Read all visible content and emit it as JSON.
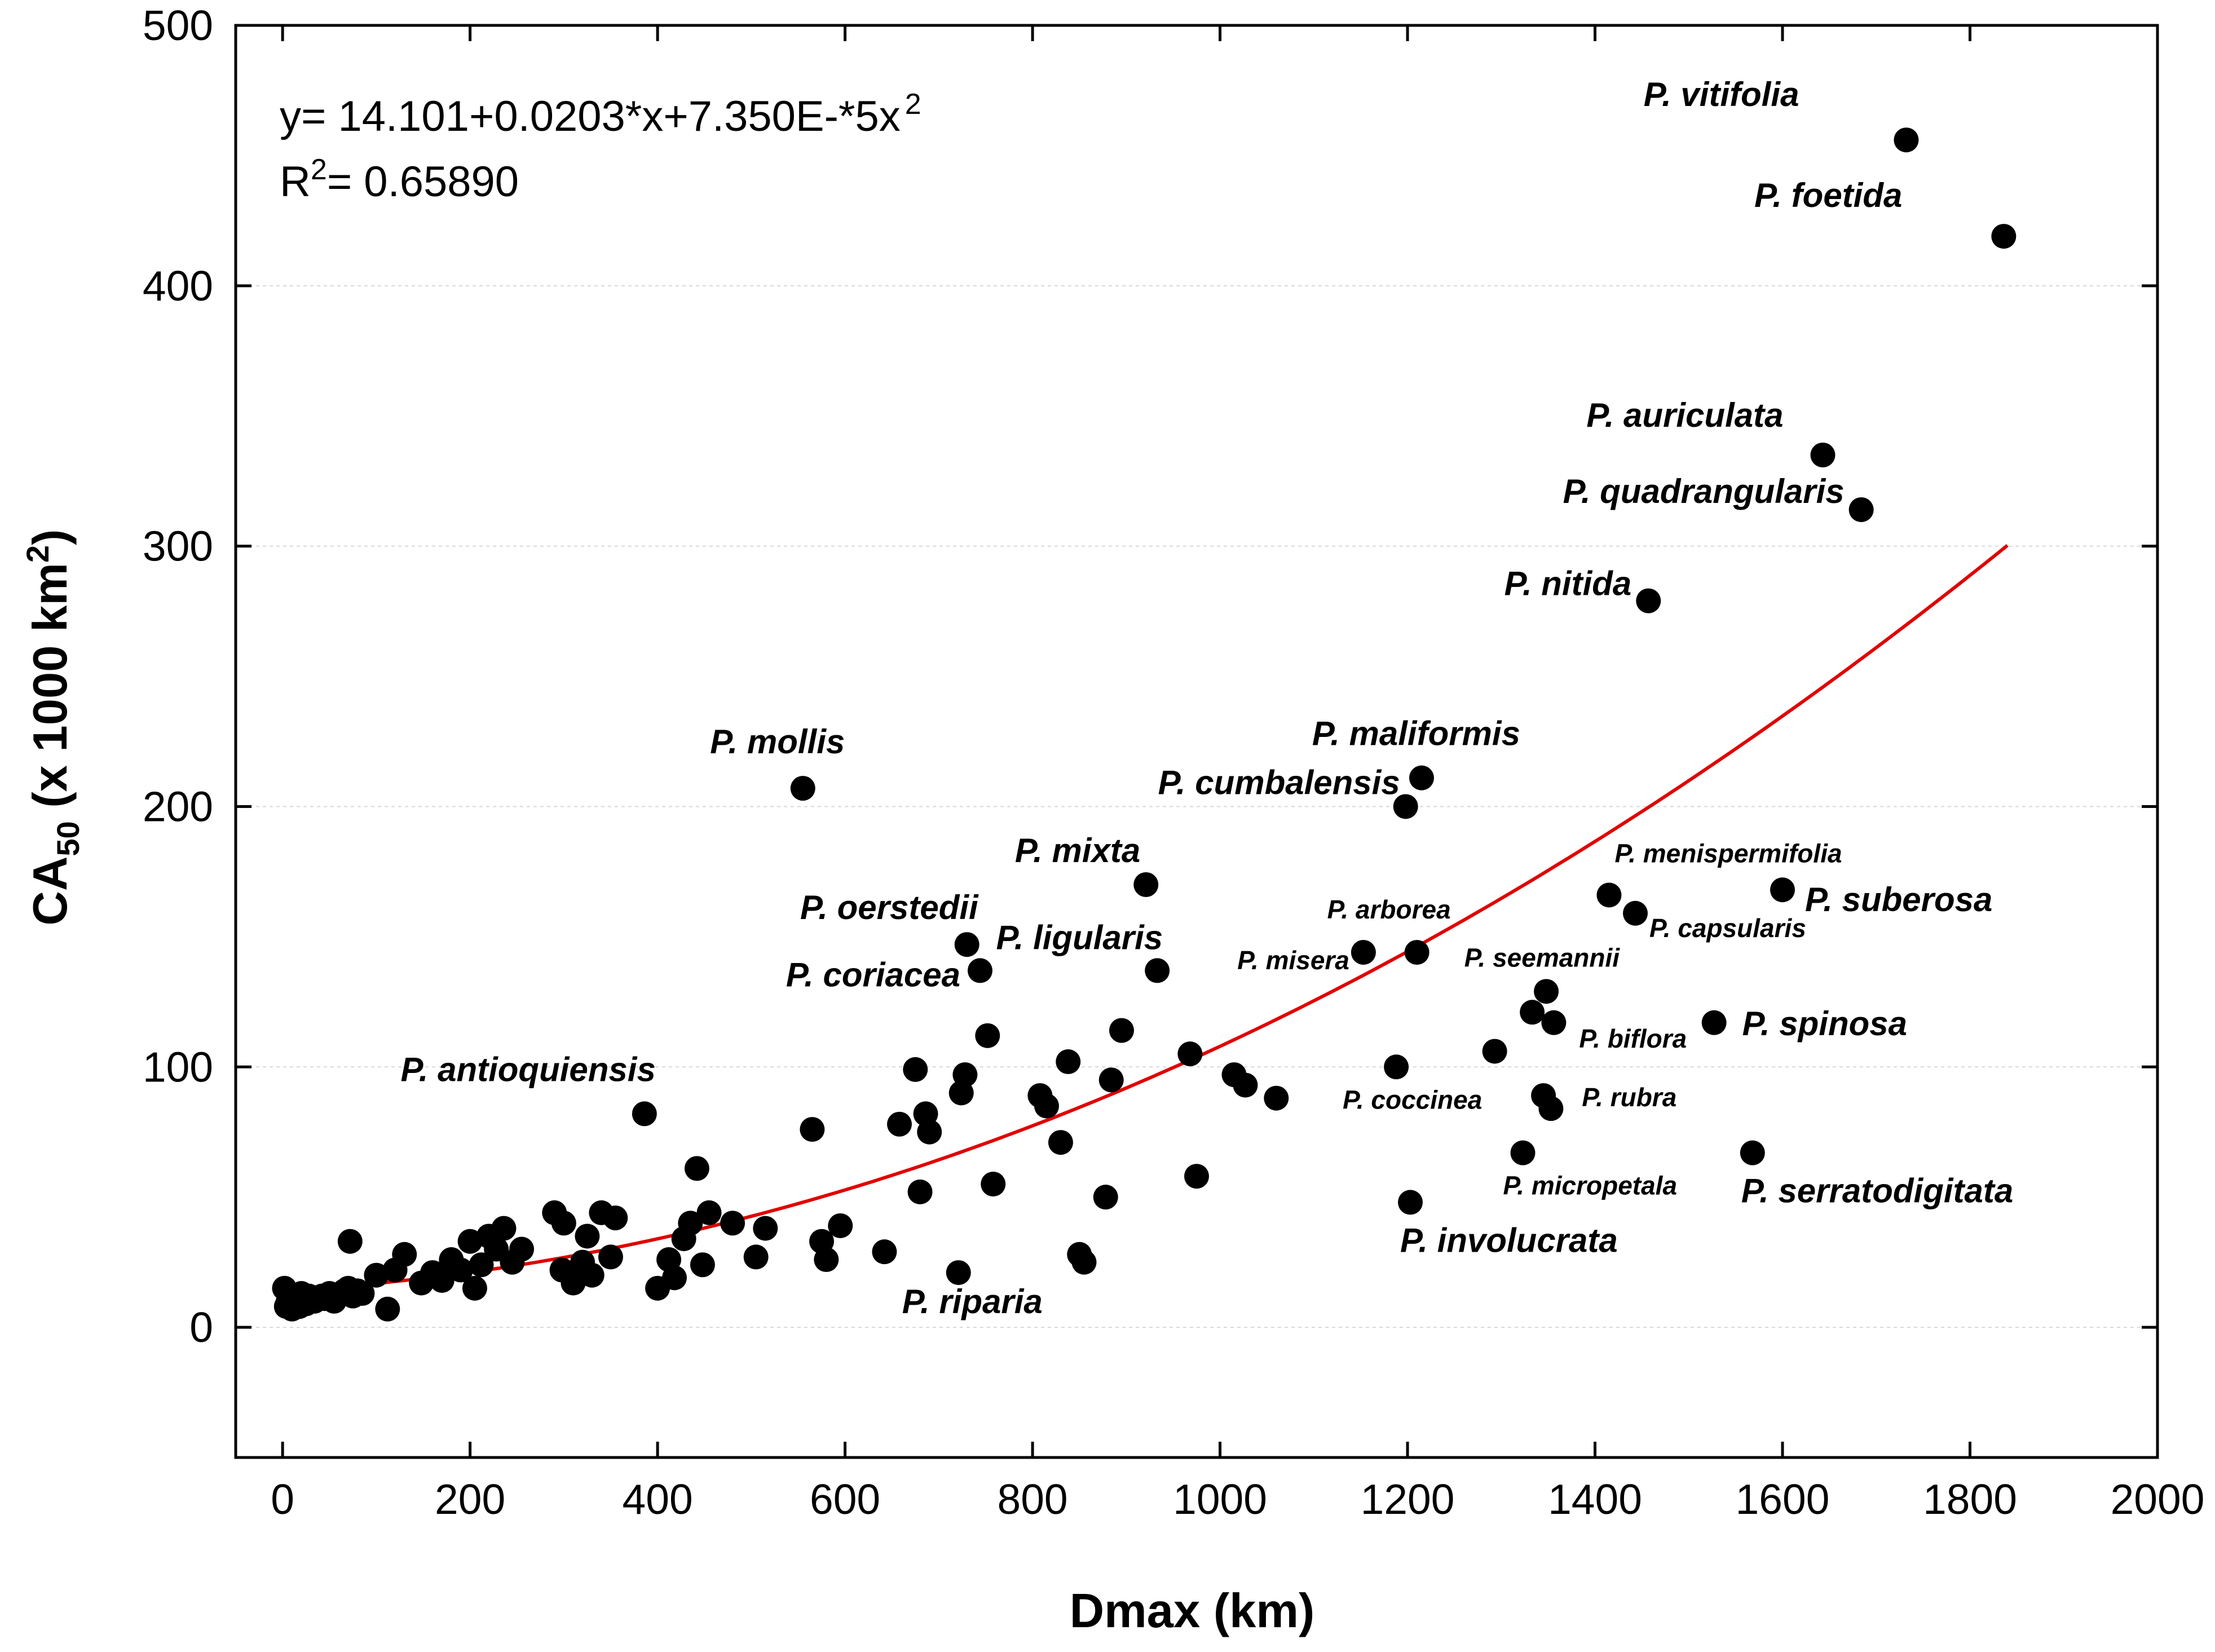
{
  "chart_data": {
    "type": "scatter",
    "xlabel": "Dmax (km)",
    "ylabel": {
      "main": "CA",
      "sub": "50",
      "rest": " (x 1000 km",
      "sup": "2",
      "end": ")"
    },
    "xlim": [
      -50,
      2000
    ],
    "ylim": [
      -50,
      500
    ],
    "xticks": [
      0,
      200,
      400,
      600,
      800,
      1000,
      1200,
      1400,
      1600,
      1800,
      2000
    ],
    "yticks": [
      0,
      100,
      200,
      300,
      400,
      500
    ],
    "grid": "horizontal dashed",
    "equation": {
      "main": "y= 14.101+0.0203*x+7.350E-*5x",
      "sup": "2"
    },
    "r2": {
      "main": "R",
      "sup": "2",
      "rest": "= 0.65890"
    },
    "fit": {
      "a": 14.101,
      "b": 0.0203,
      "c": 7.35e-05,
      "x_range": [
        0,
        1840
      ],
      "color": "#e00000"
    },
    "labeled_points": [
      {
        "name": "P. vitifolia",
        "x": 1732,
        "y": 456,
        "size": "big"
      },
      {
        "name": "P. foetida",
        "x": 1836,
        "y": 419,
        "size": "big"
      },
      {
        "name": "P. auriculata",
        "x": 1643,
        "y": 335,
        "size": "big"
      },
      {
        "name": "P. quadrangularis",
        "x": 1684,
        "y": 314,
        "size": "big"
      },
      {
        "name": "P. nitida",
        "x": 1457,
        "y": 279,
        "size": "big"
      },
      {
        "name": "P. maliformis",
        "x": 1215,
        "y": 211,
        "size": "big"
      },
      {
        "name": "P. cumbalensis",
        "x": 1198,
        "y": 200,
        "size": "big"
      },
      {
        "name": "P. mollis",
        "x": 555,
        "y": 207,
        "size": "big"
      },
      {
        "name": "P. mixta",
        "x": 921,
        "y": 170,
        "size": "big"
      },
      {
        "name": "P. menispermifolia",
        "x": 1415,
        "y": 166,
        "size": "small"
      },
      {
        "name": "P. suberosa",
        "x": 1600,
        "y": 168,
        "size": "big"
      },
      {
        "name": "P. capsularis",
        "x": 1443,
        "y": 159,
        "size": "small"
      },
      {
        "name": "P. oerstedii",
        "x": 730,
        "y": 147,
        "size": "big"
      },
      {
        "name": "P. arborea",
        "x": 1210,
        "y": 144,
        "size": "small"
      },
      {
        "name": "P. ligularis",
        "x": 933,
        "y": 137,
        "size": "big"
      },
      {
        "name": "P. misera",
        "x": 1153,
        "y": 144,
        "size": "small"
      },
      {
        "name": "P. coriacea",
        "x": 744,
        "y": 137,
        "size": "big"
      },
      {
        "name": "P. seemannii",
        "x": 1348,
        "y": 129,
        "size": "small"
      },
      {
        "name": "P. biflora",
        "x": 1356,
        "y": 117,
        "size": "small"
      },
      {
        "name": "P. spinosa",
        "x": 1527,
        "y": 117,
        "size": "big"
      },
      {
        "name": "P. coccinea",
        "x": 1188,
        "y": 100,
        "size": "small"
      },
      {
        "name": "P. rubra",
        "x": 1353,
        "y": 84,
        "size": "small"
      },
      {
        "name": "P. antioquiensis",
        "x": 386,
        "y": 82,
        "size": "big"
      },
      {
        "name": "P. micropetala",
        "x": 1323,
        "y": 67,
        "size": "small"
      },
      {
        "name": "P. serratodigitata",
        "x": 1568,
        "y": 67,
        "size": "big"
      },
      {
        "name": "P. involucrata",
        "x": 1203,
        "y": 48,
        "size": "big"
      },
      {
        "name": "P. riparia",
        "x": 721,
        "y": 21,
        "size": "big"
      }
    ],
    "points": [
      [
        2,
        15
      ],
      [
        4,
        8
      ],
      [
        6,
        10
      ],
      [
        8,
        12
      ],
      [
        10,
        7
      ],
      [
        12,
        9
      ],
      [
        15,
        11
      ],
      [
        18,
        8
      ],
      [
        20,
        13
      ],
      [
        22,
        10
      ],
      [
        25,
        9
      ],
      [
        28,
        12
      ],
      [
        30,
        11
      ],
      [
        34,
        10
      ],
      [
        38,
        11
      ],
      [
        42,
        12
      ],
      [
        45,
        11
      ],
      [
        50,
        13
      ],
      [
        55,
        10
      ],
      [
        58,
        12
      ],
      [
        62,
        13
      ],
      [
        66,
        14
      ],
      [
        70,
        15
      ],
      [
        72,
        33
      ],
      [
        75,
        12
      ],
      [
        80,
        14
      ],
      [
        85,
        13
      ],
      [
        100,
        20
      ],
      [
        112,
        7
      ],
      [
        120,
        22
      ],
      [
        130,
        28
      ],
      [
        148,
        17
      ],
      [
        160,
        21
      ],
      [
        170,
        18
      ],
      [
        180,
        26
      ],
      [
        190,
        22
      ],
      [
        200,
        33
      ],
      [
        205,
        15
      ],
      [
        212,
        24
      ],
      [
        220,
        35
      ],
      [
        228,
        30
      ],
      [
        236,
        38
      ],
      [
        245,
        25
      ],
      [
        255,
        30
      ],
      [
        290,
        44
      ],
      [
        298,
        22
      ],
      [
        300,
        40
      ],
      [
        310,
        17
      ],
      [
        320,
        25
      ],
      [
        325,
        35
      ],
      [
        330,
        20
      ],
      [
        340,
        44
      ],
      [
        350,
        27
      ],
      [
        355,
        42
      ],
      [
        400,
        15
      ],
      [
        412,
        26
      ],
      [
        418,
        19
      ],
      [
        428,
        34
      ],
      [
        435,
        40
      ],
      [
        442,
        61
      ],
      [
        448,
        24
      ],
      [
        455,
        44
      ],
      [
        480,
        40
      ],
      [
        505,
        27
      ],
      [
        515,
        38
      ],
      [
        565,
        76
      ],
      [
        575,
        33
      ],
      [
        580,
        26
      ],
      [
        595,
        39
      ],
      [
        642,
        29
      ],
      [
        658,
        78
      ],
      [
        675,
        99
      ],
      [
        680,
        52
      ],
      [
        686,
        82
      ],
      [
        690,
        75
      ],
      [
        724,
        90
      ],
      [
        728,
        97
      ],
      [
        752,
        112
      ],
      [
        758,
        55
      ],
      [
        808,
        89
      ],
      [
        815,
        85
      ],
      [
        830,
        71
      ],
      [
        838,
        102
      ],
      [
        850,
        28
      ],
      [
        855,
        25
      ],
      [
        878,
        50
      ],
      [
        884,
        95
      ],
      [
        895,
        114
      ],
      [
        968,
        105
      ],
      [
        975,
        58
      ],
      [
        1015,
        97
      ],
      [
        1027,
        93
      ],
      [
        1060,
        88
      ],
      [
        1293,
        106
      ],
      [
        1333,
        121
      ],
      [
        1345,
        89
      ]
    ]
  }
}
